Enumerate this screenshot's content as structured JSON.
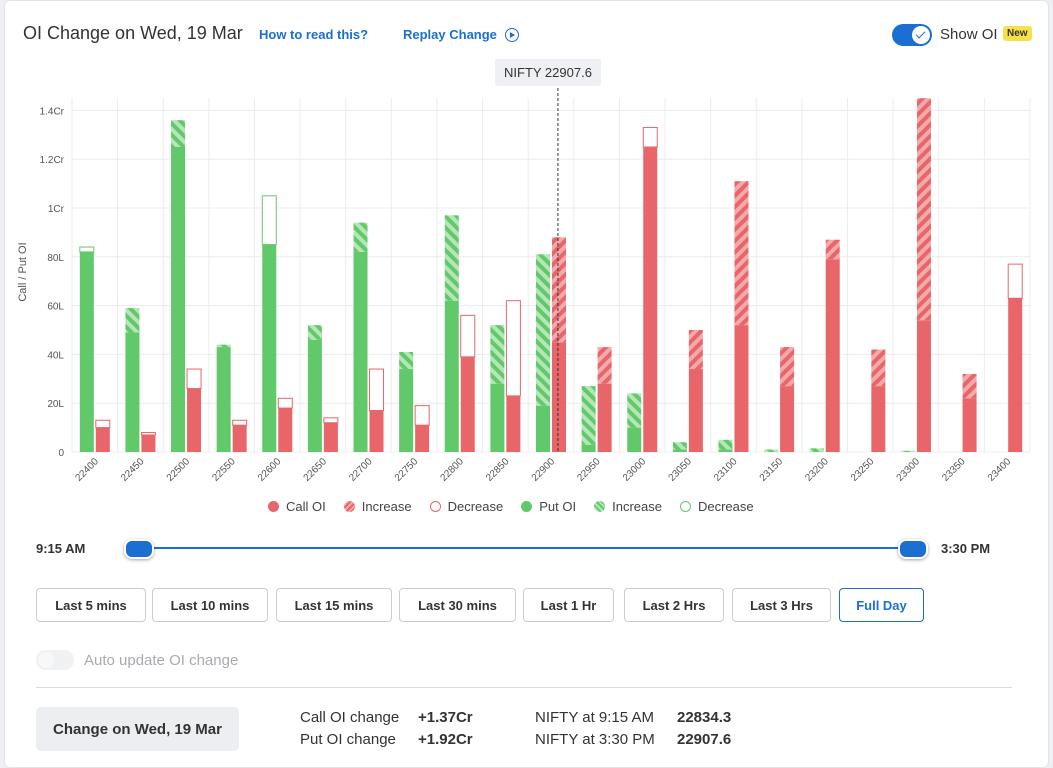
{
  "header": {
    "title": "OI Change on Wed, 19 Mar",
    "how_to_read": "How to read this?",
    "replay": "Replay Change",
    "show_oi_label": "Show OI",
    "show_oi_on": true,
    "new_badge": "New"
  },
  "spot_tooltip": "NIFTY 22907.6",
  "legend": [
    {
      "label": "Call OI",
      "kind": "call-solid"
    },
    {
      "label": "Increase",
      "kind": "call-hatch"
    },
    {
      "label": "Decrease",
      "kind": "call-outline"
    },
    {
      "label": "Put OI",
      "kind": "put-solid"
    },
    {
      "label": "Increase",
      "kind": "put-hatch"
    },
    {
      "label": "Decrease",
      "kind": "put-outline"
    }
  ],
  "colors": {
    "call": "#e8656a",
    "put": "#62c96a",
    "accent": "#1a6fd1",
    "grid": "#ececec"
  },
  "chart_data": {
    "type": "bar",
    "ylabel": "Call / Put OI",
    "ylim": [
      0,
      145
    ],
    "unit_note": "values in lakhs (L); 1Cr = 100L",
    "y_ticks": [
      {
        "value": 0,
        "label": "0"
      },
      {
        "value": 20,
        "label": "20L"
      },
      {
        "value": 40,
        "label": "40L"
      },
      {
        "value": 60,
        "label": "60L"
      },
      {
        "value": 80,
        "label": "80L"
      },
      {
        "value": 100,
        "label": "1Cr"
      },
      {
        "value": 120,
        "label": "1.2Cr"
      },
      {
        "value": 140,
        "label": "1.4Cr"
      }
    ],
    "spot_marker": {
      "strike_between": [
        "22900",
        "22950"
      ],
      "value": 22907.6
    },
    "categories": [
      "22400",
      "22450",
      "22500",
      "22550",
      "22600",
      "22650",
      "22700",
      "22750",
      "22800",
      "22850",
      "22900",
      "22950",
      "23000",
      "23050",
      "23100",
      "23150",
      "23200",
      "23250",
      "23300",
      "23350",
      "23400"
    ],
    "series": [
      {
        "name": "Put OI",
        "values": [
          82,
          49,
          125,
          43,
          85,
          46,
          82,
          34,
          62,
          28,
          19,
          3,
          10,
          1,
          1,
          0,
          0,
          0,
          0,
          0,
          0
        ]
      },
      {
        "name": "Put OI Increase",
        "values": [
          0,
          10,
          11,
          1,
          0,
          6,
          12,
          7,
          35,
          24,
          62,
          24,
          14,
          3,
          4,
          1,
          1.5,
          0,
          0.5,
          0,
          0
        ]
      },
      {
        "name": "Put OI Decrease",
        "values": [
          2,
          0,
          0,
          0,
          20,
          0,
          0,
          0,
          0,
          0,
          0,
          0,
          0,
          0,
          0,
          0,
          0,
          0,
          0,
          0,
          0
        ]
      },
      {
        "name": "Call OI",
        "values": [
          10,
          7,
          26,
          11,
          18,
          12,
          17,
          11,
          39,
          23,
          45,
          28,
          125,
          34,
          52,
          27,
          79,
          27,
          54,
          22,
          63
        ]
      },
      {
        "name": "Call OI Increase",
        "values": [
          0,
          0,
          0,
          0,
          0,
          0,
          0,
          0,
          0,
          0,
          43,
          15,
          0,
          16,
          59,
          16,
          8,
          15,
          93,
          10,
          0
        ]
      },
      {
        "name": "Call OI Decrease",
        "values": [
          3,
          1,
          8,
          2,
          4,
          2,
          17,
          8,
          17,
          39,
          0,
          0,
          8,
          0,
          0,
          0,
          0,
          0,
          0,
          0,
          14
        ]
      }
    ]
  },
  "slider": {
    "start": "9:15 AM",
    "end": "3:30 PM"
  },
  "ranges": [
    {
      "label": "Last 5 mins",
      "active": false
    },
    {
      "label": "Last 10 mins",
      "active": false
    },
    {
      "label": "Last 15 mins",
      "active": false
    },
    {
      "label": "Last 30 mins",
      "active": false
    },
    {
      "label": "Last 1 Hr",
      "active": false
    },
    {
      "label": "Last 2 Hrs",
      "active": false
    },
    {
      "label": "Last 3 Hrs",
      "active": false
    },
    {
      "label": "Full Day",
      "active": true
    }
  ],
  "auto_update": {
    "label": "Auto update OI change",
    "on": false
  },
  "footer": {
    "change_button": "Change on Wed, 19 Mar",
    "call_label": "Call OI change",
    "call_value": "+1.37Cr",
    "put_label": "Put OI change",
    "put_value": "+1.92Cr",
    "open_label": "NIFTY at 9:15 AM",
    "open_value": "22834.3",
    "close_label": "NIFTY at 3:30 PM",
    "close_value": "22907.6"
  }
}
